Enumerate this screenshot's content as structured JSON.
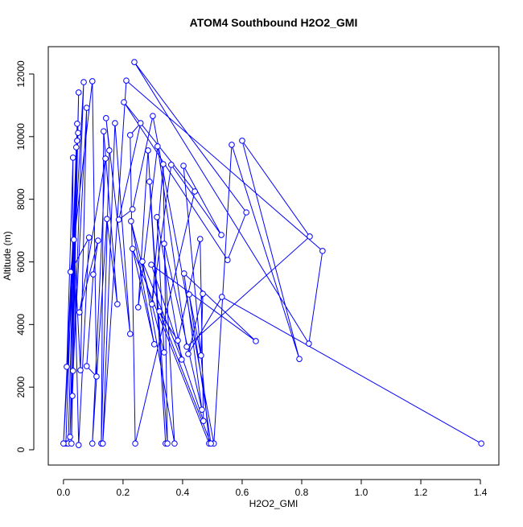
{
  "chart_data": {
    "type": "scatter",
    "style": "points-and-lines",
    "title": "ATOM4 Southbound H2O2_GMI",
    "x_label": "H2O2_GMI",
    "y_label": "Altitude (m)",
    "color": "#0000ff",
    "xlim": [
      -0.051,
      1.462
    ],
    "ylim": [
      -488,
      12873
    ],
    "xticks": [
      {
        "value": 0,
        "label": "0.0"
      },
      0.2,
      0.4,
      0.6,
      0.8,
      {
        "value": 1,
        "label": "1.0"
      },
      1.2,
      1.4
    ],
    "yticks": [
      0,
      2000,
      4000,
      6000,
      8000,
      10000,
      12000
    ],
    "x": [
      0.008,
      0.043,
      0.016,
      0.046,
      0.022,
      0.051,
      0.03,
      0.068,
      0,
      0.049,
      0.011,
      0.032,
      0.027,
      0.046,
      0.032,
      0.078,
      0.057,
      0.035,
      0.051,
      0.086,
      0.024,
      0.097,
      0.111,
      0.078,
      0.1,
      0.116,
      0.054,
      0.141,
      0.097,
      0.146,
      0.181,
      0.135,
      0.127,
      0.154,
      0.143,
      0.224,
      0.173,
      0.132,
      0.211,
      0.87,
      0.824,
      0.238,
      0.614,
      0.551,
      0.203,
      0.441,
      0.241,
      0.224,
      0.259,
      0.186,
      0.232,
      0.3,
      0.505,
      0.565,
      0.792,
      0.6,
      0.827,
      0.414,
      0.316,
      0.251,
      0.284,
      0.343,
      0.289,
      0.349,
      0.335,
      0.297,
      0.362,
      0.53,
      0.403,
      0.489,
      0.232,
      0.305,
      0.227,
      0.338,
      0.314,
      0.397,
      0.265,
      0.373,
      0.338,
      0.465,
      0.405,
      0.646,
      0.295,
      0.47,
      0.459,
      0.384,
      0.322,
      0.495,
      0.422,
      0.462,
      0.468,
      0.419,
      0.532,
      1.403
    ],
    "y": [
      200,
      9660,
      200,
      10410,
      410,
      11410,
      1720,
      11740,
      200,
      10120,
      2650,
      9330,
      200,
      9870,
      2520,
      10920,
      2540,
      6710,
      150,
      6780,
      5680,
      11770,
      2340,
      2670,
      5600,
      6680,
      4390,
      9300,
      200,
      7370,
      4650,
      10170,
      200,
      9560,
      10590,
      3700,
      10430,
      200,
      11790,
      6350,
      3390,
      12380,
      7580,
      6060,
      11100,
      8250,
      200,
      10050,
      10430,
      7350,
      7680,
      10660,
      200,
      9740,
      2900,
      9870,
      6810,
      3290,
      9690,
      4550,
      9560,
      200,
      8560,
      200,
      9120,
      4650,
      9100,
      6860,
      9070,
      200,
      6420,
      3370,
      7300,
      3110,
      7430,
      2880,
      6010,
      200,
      6580,
      1280,
      5630,
      3470,
      5910,
      920,
      6730,
      3490,
      4420,
      200,
      4960,
      3010,
      4980,
      3060,
      4880,
      200
    ]
  }
}
